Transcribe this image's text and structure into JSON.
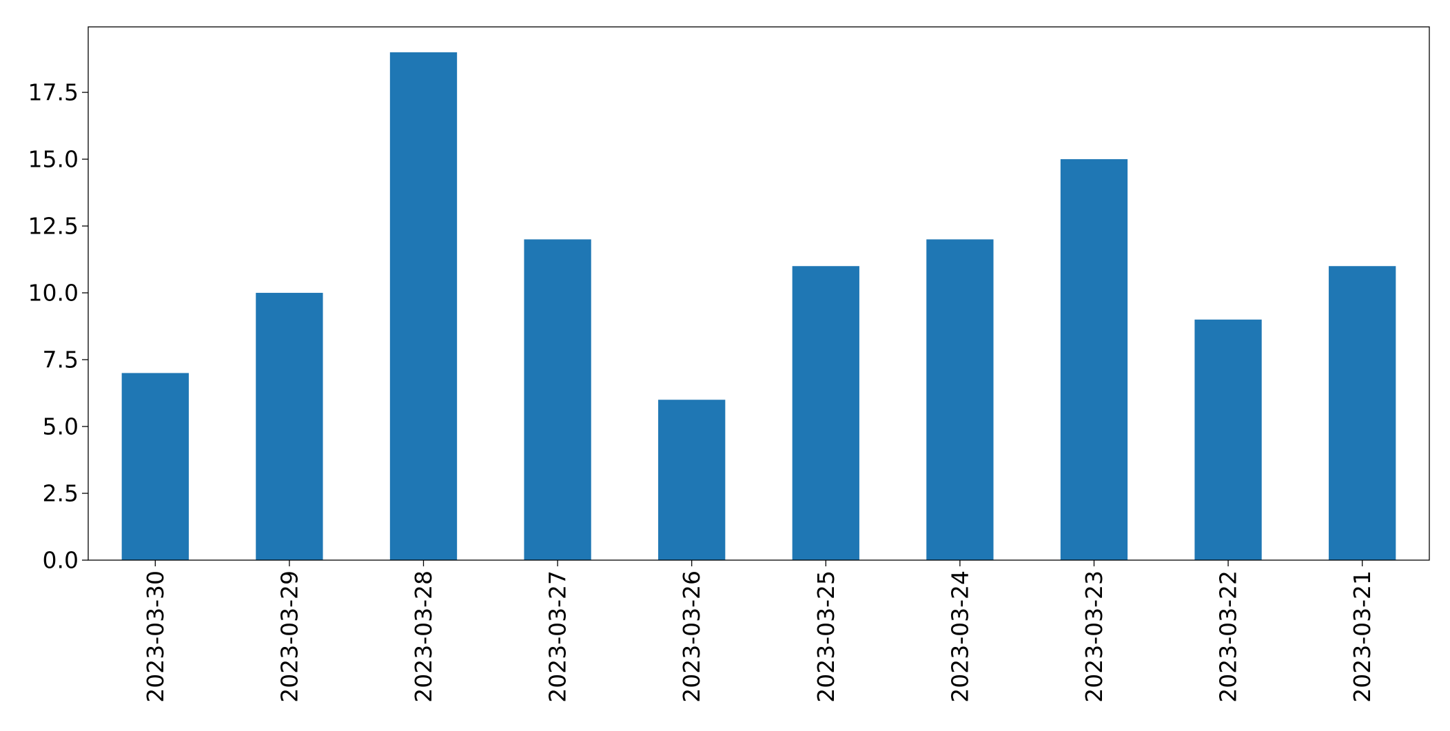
{
  "chart_data": {
    "type": "bar",
    "title": "",
    "xlabel": "",
    "ylabel": "",
    "categories": [
      "2023-03-30",
      "2023-03-29",
      "2023-03-28",
      "2023-03-27",
      "2023-03-26",
      "2023-03-25",
      "2023-03-24",
      "2023-03-23",
      "2023-03-22",
      "2023-03-21"
    ],
    "values": [
      7,
      10,
      19,
      12,
      6,
      11,
      12,
      15,
      9,
      11
    ],
    "ylim": [
      0,
      19.95
    ],
    "yticks": [
      0,
      2.5,
      5,
      7.5,
      10,
      12.5,
      15,
      17.5
    ],
    "ytick_labels": [
      "0.0",
      "2.5",
      "5.0",
      "7.5",
      "10.0",
      "12.5",
      "15.0",
      "17.5"
    ],
    "bar_color": "#1f77b4",
    "grid": false,
    "legend": "none",
    "xtick_rotation": "vertical"
  }
}
